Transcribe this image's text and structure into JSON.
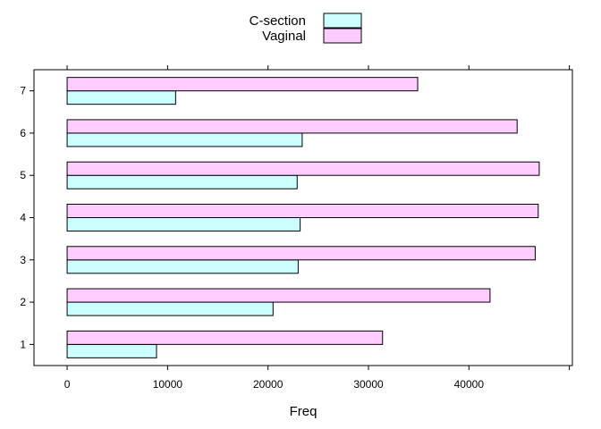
{
  "chart_data": {
    "type": "bar",
    "orientation": "horizontal",
    "categories": [
      "1",
      "2",
      "3",
      "4",
      "5",
      "6",
      "7"
    ],
    "series": [
      {
        "name": "C-section",
        "color": "#ccffff",
        "values": [
          8900,
          20500,
          23000,
          23200,
          22900,
          23400,
          10800
        ]
      },
      {
        "name": "Vaginal",
        "color": "#ffccff",
        "values": [
          31400,
          42100,
          46600,
          46900,
          47000,
          44800,
          34900
        ]
      }
    ],
    "xlabel": "Freq",
    "ylabel": "",
    "title": "",
    "xlim": [
      -3300,
      50300
    ],
    "xticks": [
      0,
      10000,
      20000,
      30000,
      40000
    ],
    "grid": false,
    "legend_position": "top-center"
  }
}
